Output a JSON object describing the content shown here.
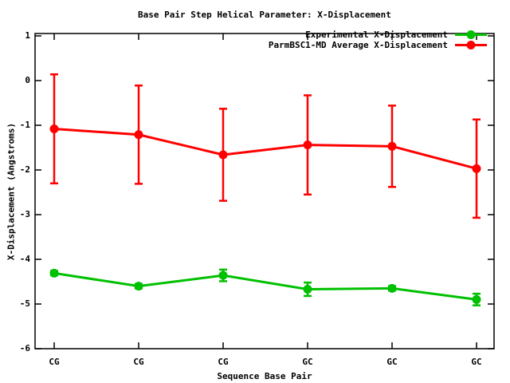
{
  "chart_data": {
    "type": "line",
    "title": "Base Pair Step Helical Parameter: X-Displacement",
    "xlabel": "Sequence Base Pair",
    "ylabel": "X-Displacement (Angstroms)",
    "categories": [
      "CG",
      "CG",
      "CG",
      "GC",
      "GC",
      "GC"
    ],
    "ylim": [
      -6,
      1
    ],
    "yticks": [
      1,
      0,
      -1,
      -2,
      -3,
      -4,
      -5,
      -6
    ],
    "grid": false,
    "legend_position": "top-right-inside",
    "background_color": "#ffffff",
    "axis_color": "#000000",
    "series": [
      {
        "name": "Experimental X-Displacement",
        "color": "#00c000",
        "marker": "filled-circle",
        "values": [
          -4.31,
          -4.6,
          -4.36,
          -4.67,
          -4.65,
          -4.9
        ],
        "yerr": [
          0.05,
          0.05,
          0.13,
          0.15,
          0.05,
          0.13
        ]
      },
      {
        "name": "ParmBSC1-MD Average X-Displacement",
        "color": "#ff0000",
        "marker": "filled-circle",
        "values": [
          -1.08,
          -1.21,
          -1.66,
          -1.44,
          -1.47,
          -1.97
        ],
        "yerr": [
          1.22,
          1.1,
          1.03,
          1.11,
          0.91,
          1.1
        ]
      }
    ]
  }
}
